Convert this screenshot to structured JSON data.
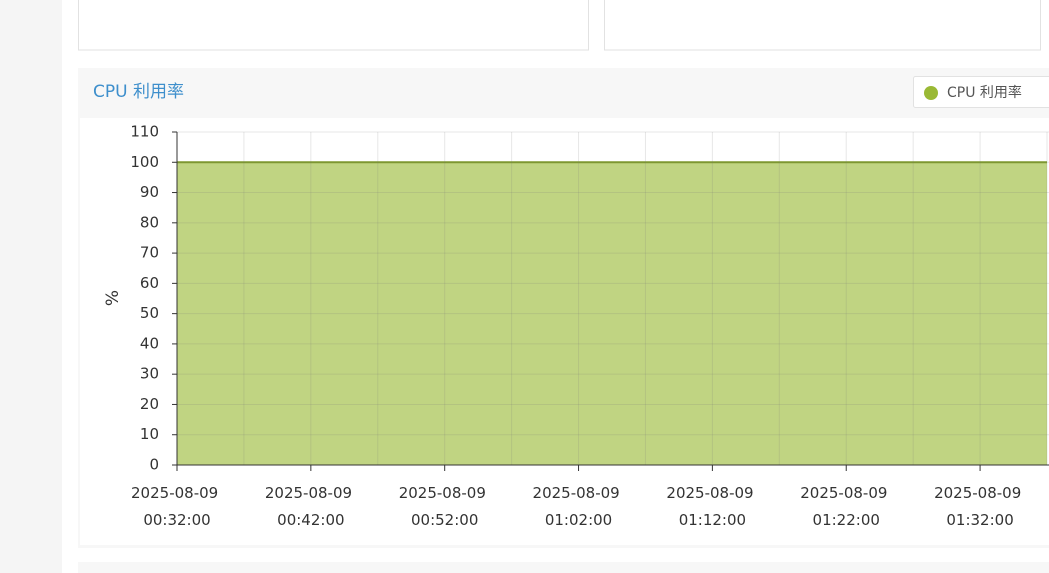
{
  "chart_data": {
    "type": "area",
    "title": "CPU 利用率",
    "ylabel": "%",
    "x": [
      "2025-08-09 00:32:00",
      "2025-08-09 00:37:00",
      "2025-08-09 00:42:00",
      "2025-08-09 00:47:00",
      "2025-08-09 00:52:00",
      "2025-08-09 00:57:00",
      "2025-08-09 01:02:00",
      "2025-08-09 01:07:00",
      "2025-08-09 01:12:00",
      "2025-08-09 01:17:00",
      "2025-08-09 01:22:00",
      "2025-08-09 01:27:00",
      "2025-08-09 01:32:00",
      "2025-08-09 01:37:00"
    ],
    "series": [
      {
        "name": "CPU 利用率",
        "color": "#9ab935",
        "values": [
          100,
          100,
          100,
          100,
          100,
          100,
          100,
          100,
          100,
          100,
          100,
          100,
          100,
          100
        ]
      }
    ],
    "xlim": [
      "2025-08-09 00:32:00",
      "2025-08-09 01:37:00"
    ],
    "xticks": [
      "2025-08-09 00:32:00",
      "2025-08-09 00:42:00",
      "2025-08-09 00:52:00",
      "2025-08-09 01:02:00",
      "2025-08-09 01:12:00",
      "2025-08-09 01:22:00",
      "2025-08-09 01:32:00"
    ],
    "ylim": [
      0,
      110
    ],
    "yticks": [
      0,
      10,
      20,
      30,
      40,
      50,
      60,
      70,
      80,
      90,
      100,
      110
    ],
    "grid": true,
    "legend": "top-right"
  }
}
